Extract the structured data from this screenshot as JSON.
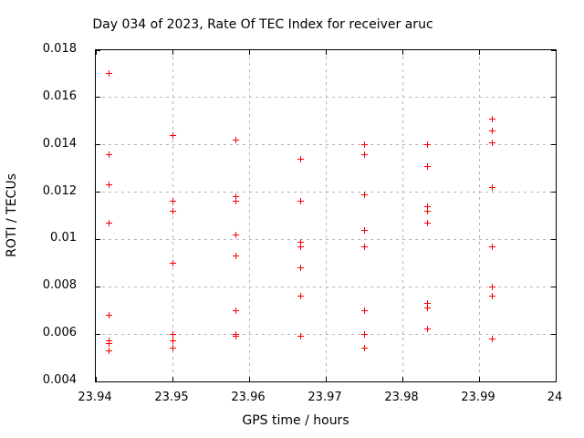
{
  "chart_data": {
    "type": "scatter",
    "title": "Day 034 of 2023, Rate Of TEC Index for receiver aruc",
    "xlabel": "GPS time / hours",
    "ylabel": "ROTI / TECUs",
    "xlim": [
      23.94,
      24
    ],
    "ylim": [
      0.004,
      0.018
    ],
    "xticks": {
      "values": [
        23.94,
        23.95,
        23.96,
        23.97,
        23.98,
        23.99,
        24
      ],
      "labels": [
        "23.94",
        "23.95",
        "23.96",
        "23.97",
        "23.98",
        "23.99",
        "24"
      ]
    },
    "yticks": {
      "values": [
        0.004,
        0.006,
        0.008,
        0.01,
        0.012,
        0.014,
        0.016,
        0.018
      ],
      "labels": [
        "0.004",
        "0.006",
        "0.008",
        "0.01",
        "0.012",
        "0.014",
        "0.016",
        "0.018"
      ]
    },
    "grid": true,
    "legend": "none",
    "marker": {
      "shape": "plus",
      "color": "#ff0000",
      "size": 7
    },
    "colors": {
      "marker": "#ff0000",
      "grid": "#b4b4b4",
      "border": "#000000",
      "background": "#ffffff",
      "text": "#000000"
    },
    "series": [
      {
        "name": "ROTI",
        "points": [
          [
            23.94167,
            0.017
          ],
          [
            23.94167,
            0.0136
          ],
          [
            23.94167,
            0.0123
          ],
          [
            23.94167,
            0.0107
          ],
          [
            23.94167,
            0.0068
          ],
          [
            23.94167,
            0.0057
          ],
          [
            23.94167,
            0.0056
          ],
          [
            23.94167,
            0.0053
          ],
          [
            23.95,
            0.0144
          ],
          [
            23.95,
            0.0116
          ],
          [
            23.95,
            0.0112
          ],
          [
            23.95,
            0.009
          ],
          [
            23.95,
            0.006
          ],
          [
            23.95,
            0.0057
          ],
          [
            23.95,
            0.0054
          ],
          [
            23.95833,
            0.0142
          ],
          [
            23.95833,
            0.0118
          ],
          [
            23.95833,
            0.0116
          ],
          [
            23.95833,
            0.0102
          ],
          [
            23.95833,
            0.0093
          ],
          [
            23.95833,
            0.007
          ],
          [
            23.95833,
            0.006
          ],
          [
            23.95833,
            0.0059
          ],
          [
            23.96667,
            0.0134
          ],
          [
            23.96667,
            0.0116
          ],
          [
            23.96667,
            0.0099
          ],
          [
            23.96667,
            0.0097
          ],
          [
            23.96667,
            0.0088
          ],
          [
            23.96667,
            0.0076
          ],
          [
            23.96667,
            0.0059
          ],
          [
            23.975,
            0.014
          ],
          [
            23.975,
            0.0136
          ],
          [
            23.975,
            0.0119
          ],
          [
            23.975,
            0.0104
          ],
          [
            23.975,
            0.0097
          ],
          [
            23.975,
            0.007
          ],
          [
            23.975,
            0.006
          ],
          [
            23.975,
            0.0054
          ],
          [
            23.98333,
            0.014
          ],
          [
            23.98333,
            0.0131
          ],
          [
            23.98333,
            0.0114
          ],
          [
            23.98333,
            0.0112
          ],
          [
            23.98333,
            0.0107
          ],
          [
            23.98333,
            0.0073
          ],
          [
            23.98333,
            0.0071
          ],
          [
            23.98333,
            0.0062
          ],
          [
            23.99167,
            0.0151
          ],
          [
            23.99167,
            0.0146
          ],
          [
            23.99167,
            0.0141
          ],
          [
            23.99167,
            0.0122
          ],
          [
            23.99167,
            0.0097
          ],
          [
            23.99167,
            0.008
          ],
          [
            23.99167,
            0.0076
          ],
          [
            23.99167,
            0.0058
          ]
        ]
      }
    ]
  }
}
